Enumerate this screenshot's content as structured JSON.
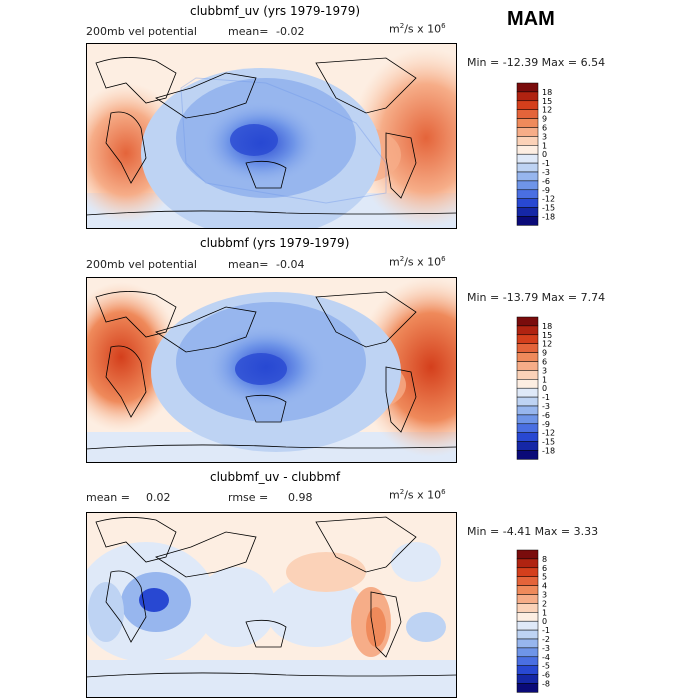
{
  "season": "MAM",
  "units_prefix": "m",
  "units_sup1": "2",
  "units_mid": "/s x 10",
  "units_sup2": "6",
  "chart_data": [
    {
      "type": "heatmap",
      "title": "clubbmf_uv (yrs 1979-1979)",
      "variable_label": "200mb vel potential",
      "mean_label": "mean=",
      "mean_value": "-0.02",
      "minmax_text": "Min = -12.39 Max =  6.54",
      "min": -12.39,
      "max": 6.54,
      "colorbar_levels": [
        "18",
        "15",
        "12",
        "9",
        "6",
        "3",
        "1",
        "0",
        "-1",
        "-3",
        "-6",
        "-9",
        "-12",
        "-15",
        "-18"
      ],
      "colorbar_colors": [
        "#7a0c0c",
        "#b02311",
        "#d43f1c",
        "#e4643a",
        "#ef8a5b",
        "#f6ad88",
        "#fbd2b8",
        "#fdeee2",
        "#dfe9f8",
        "#bed3f3",
        "#97b6ee",
        "#6f95e8",
        "#4a6fe2",
        "#2848d2",
        "#1527a6",
        "#0a0a78"
      ]
    },
    {
      "type": "heatmap",
      "title": "clubbmf (yrs 1979-1979)",
      "variable_label": "200mb vel potential",
      "mean_label": "mean=",
      "mean_value": "-0.04",
      "minmax_text": "Min = -13.79 Max =  7.74",
      "min": -13.79,
      "max": 7.74,
      "colorbar_levels": [
        "18",
        "15",
        "12",
        "9",
        "6",
        "3",
        "1",
        "0",
        "-1",
        "-3",
        "-6",
        "-9",
        "-12",
        "-15",
        "-18"
      ],
      "colorbar_colors": [
        "#7a0c0c",
        "#b02311",
        "#d43f1c",
        "#e4643a",
        "#ef8a5b",
        "#f6ad88",
        "#fbd2b8",
        "#fdeee2",
        "#dfe9f8",
        "#bed3f3",
        "#97b6ee",
        "#6f95e8",
        "#4a6fe2",
        "#2848d2",
        "#1527a6",
        "#0a0a78"
      ]
    },
    {
      "type": "heatmap",
      "title": "clubbmf_uv - clubbmf",
      "mean_label": "mean =",
      "mean_value": "0.02",
      "rmse_label": "rmse =",
      "rmse_value": "0.98",
      "minmax_text": "Min =  -4.41 Max =  3.33",
      "min": -4.41,
      "max": 3.33,
      "colorbar_levels": [
        "8",
        "6",
        "5",
        "4",
        "3",
        "2",
        "1",
        "0",
        "-1",
        "-2",
        "-3",
        "-4",
        "-5",
        "-6",
        "-8"
      ],
      "colorbar_colors": [
        "#7a0c0c",
        "#b02311",
        "#d43f1c",
        "#e4643a",
        "#ef8a5b",
        "#f6ad88",
        "#fbd2b8",
        "#fdeee2",
        "#dfe9f8",
        "#bed3f3",
        "#97b6ee",
        "#6f95e8",
        "#4a6fe2",
        "#2848d2",
        "#1527a6",
        "#0a0a78"
      ]
    }
  ]
}
